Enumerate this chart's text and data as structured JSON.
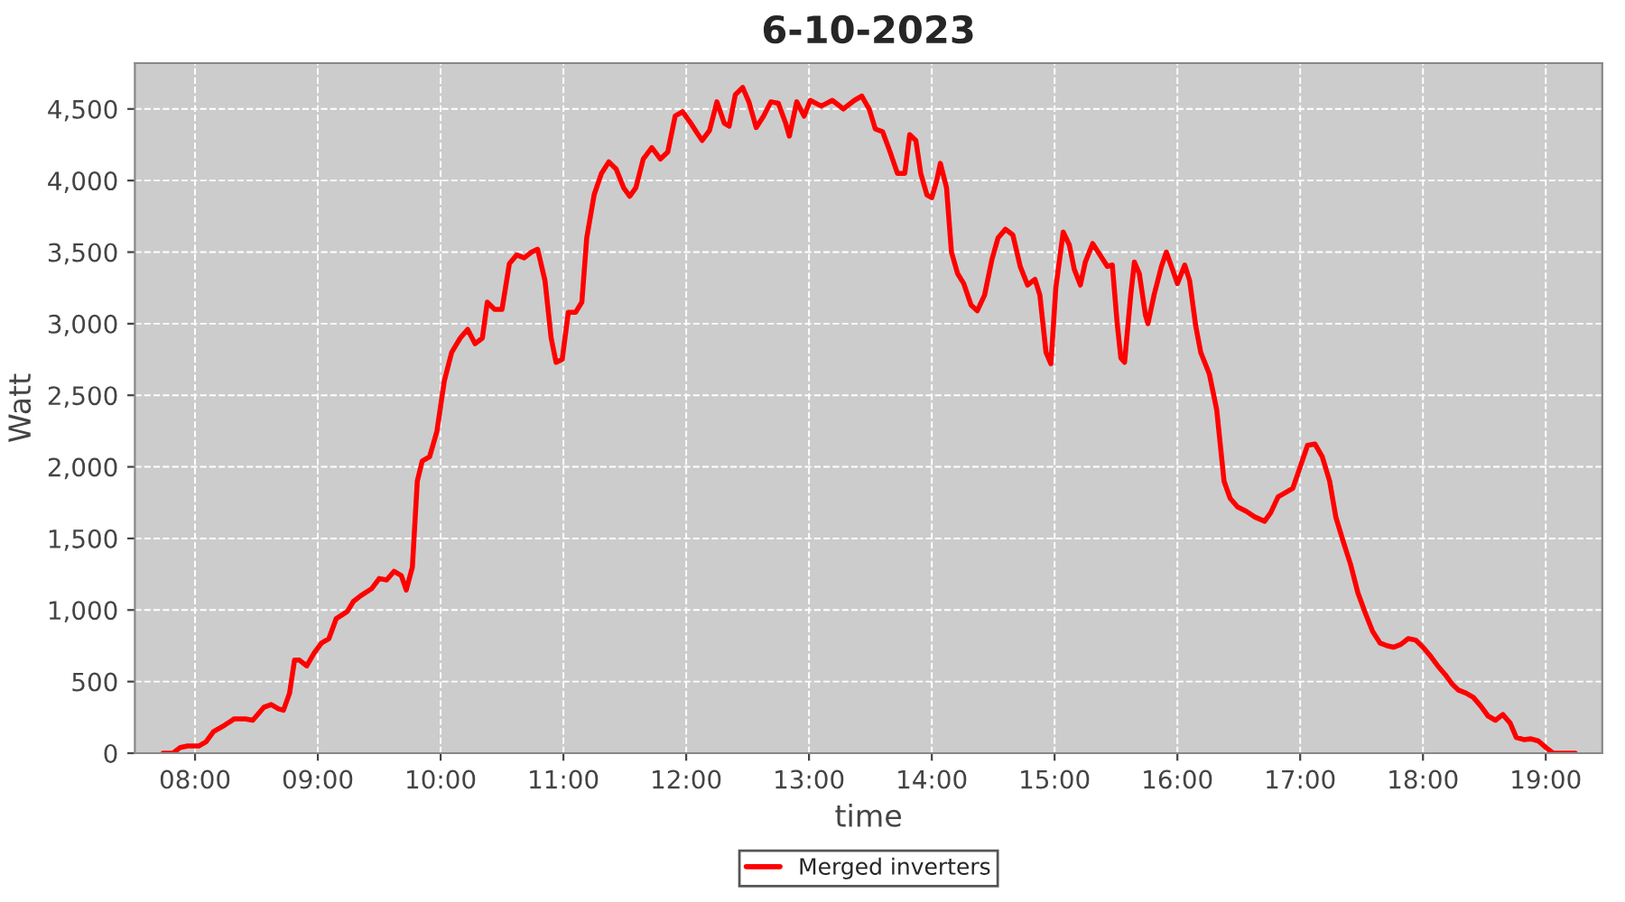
{
  "chart_data": {
    "type": "line",
    "title": "6-10-2023",
    "xlabel": "time",
    "ylabel": "Watt",
    "xlim": [
      7.51,
      19.46
    ],
    "ylim": [
      0,
      4820
    ],
    "xticks": [
      {
        "value": 8,
        "label": "08:00"
      },
      {
        "value": 9,
        "label": "09:00"
      },
      {
        "value": 10,
        "label": "10:00"
      },
      {
        "value": 11,
        "label": "11:00"
      },
      {
        "value": 12,
        "label": "12:00"
      },
      {
        "value": 13,
        "label": "13:00"
      },
      {
        "value": 14,
        "label": "14:00"
      },
      {
        "value": 15,
        "label": "15:00"
      },
      {
        "value": 16,
        "label": "16:00"
      },
      {
        "value": 17,
        "label": "17:00"
      },
      {
        "value": 18,
        "label": "18:00"
      },
      {
        "value": 19,
        "label": "19:00"
      }
    ],
    "yticks": [
      0,
      500,
      {
        "value": 1000,
        "label": "1,000"
      },
      {
        "value": 1500,
        "label": "1,500"
      },
      {
        "value": 2000,
        "label": "2,000"
      },
      {
        "value": 2500,
        "label": "2,500"
      },
      {
        "value": 3000,
        "label": "3,000"
      },
      {
        "value": 3500,
        "label": "3,500"
      },
      {
        "value": 4000,
        "label": "4,000"
      },
      {
        "value": 4500,
        "label": "4,500"
      }
    ],
    "grid": true,
    "legend": "bottom",
    "marker": "none",
    "line_style": "solid",
    "series": [
      {
        "name": "Merged inverters",
        "color": "#ff0000",
        "x": [
          7.74,
          7.82,
          7.88,
          7.94,
          8.03,
          8.09,
          8.15,
          8.24,
          8.32,
          8.41,
          8.47,
          8.56,
          8.62,
          8.68,
          8.72,
          8.77,
          8.81,
          8.85,
          8.91,
          8.97,
          9.03,
          9.09,
          9.15,
          9.24,
          9.29,
          9.35,
          9.44,
          9.5,
          9.56,
          9.62,
          9.68,
          9.72,
          9.77,
          9.81,
          9.85,
          9.91,
          9.97,
          10.03,
          10.09,
          10.16,
          10.22,
          10.28,
          10.34,
          10.38,
          10.44,
          10.5,
          10.56,
          10.62,
          10.68,
          10.74,
          10.79,
          10.85,
          10.9,
          10.94,
          10.99,
          11.04,
          11.1,
          11.15,
          11.19,
          11.25,
          11.31,
          11.37,
          11.43,
          11.49,
          11.54,
          11.59,
          11.65,
          11.72,
          11.79,
          11.85,
          11.91,
          11.97,
          12.03,
          12.09,
          12.13,
          12.19,
          12.25,
          12.31,
          12.35,
          12.4,
          12.46,
          12.51,
          12.57,
          12.63,
          12.69,
          12.75,
          12.81,
          12.84,
          12.9,
          12.96,
          13.01,
          13.1,
          13.19,
          13.28,
          13.37,
          13.43,
          13.49,
          13.54,
          13.6,
          13.66,
          13.72,
          13.78,
          13.82,
          13.87,
          13.91,
          13.96,
          14.0,
          14.04,
          14.07,
          14.12,
          14.16,
          14.21,
          14.26,
          14.32,
          14.37,
          14.43,
          14.49,
          14.54,
          14.6,
          14.66,
          14.72,
          14.78,
          14.84,
          14.88,
          14.93,
          14.97,
          15.01,
          15.07,
          15.12,
          15.16,
          15.21,
          15.25,
          15.31,
          15.37,
          15.43,
          15.47,
          15.51,
          15.54,
          15.57,
          15.62,
          15.65,
          15.69,
          15.74,
          15.76,
          15.81,
          15.87,
          15.91,
          15.96,
          16.0,
          16.06,
          16.1,
          16.15,
          16.19,
          16.26,
          16.32,
          16.38,
          16.43,
          16.49,
          16.56,
          16.63,
          16.71,
          16.76,
          16.82,
          16.88,
          16.94,
          17.0,
          17.06,
          17.12,
          17.18,
          17.24,
          17.29,
          17.35,
          17.41,
          17.47,
          17.53,
          17.59,
          17.65,
          17.71,
          17.76,
          17.82,
          17.88,
          17.94,
          18.0,
          18.06,
          18.12,
          18.18,
          18.24,
          18.29,
          18.35,
          18.41,
          18.47,
          18.53,
          18.59,
          18.65,
          18.71,
          18.76,
          18.82,
          18.88,
          18.94,
          19.0,
          19.06,
          19.15,
          19.24
        ],
        "values": [
          0,
          0,
          40,
          50,
          50,
          80,
          150,
          195,
          240,
          240,
          230,
          320,
          340,
          310,
          300,
          420,
          650,
          650,
          610,
          700,
          770,
          800,
          940,
          990,
          1060,
          1100,
          1150,
          1220,
          1210,
          1270,
          1240,
          1140,
          1300,
          1900,
          2040,
          2070,
          2250,
          2600,
          2800,
          2900,
          2960,
          2860,
          2900,
          3150,
          3100,
          3100,
          3420,
          3480,
          3460,
          3500,
          3520,
          3300,
          2900,
          2730,
          2750,
          3080,
          3080,
          3150,
          3600,
          3900,
          4050,
          4130,
          4080,
          3950,
          3890,
          3950,
          4150,
          4230,
          4150,
          4200,
          4450,
          4480,
          4410,
          4330,
          4280,
          4350,
          4550,
          4400,
          4380,
          4600,
          4650,
          4550,
          4370,
          4450,
          4550,
          4540,
          4400,
          4310,
          4550,
          4450,
          4560,
          4520,
          4560,
          4500,
          4560,
          4590,
          4500,
          4360,
          4340,
          4200,
          4050,
          4050,
          4320,
          4280,
          4050,
          3900,
          3880,
          4000,
          4120,
          3950,
          3500,
          3350,
          3280,
          3130,
          3090,
          3200,
          3450,
          3600,
          3660,
          3620,
          3400,
          3270,
          3310,
          3200,
          2800,
          2720,
          3250,
          3640,
          3550,
          3380,
          3270,
          3430,
          3560,
          3480,
          3400,
          3410,
          3000,
          2760,
          2730,
          3200,
          3430,
          3350,
          3060,
          3000,
          3200,
          3400,
          3500,
          3380,
          3280,
          3410,
          3300,
          2980,
          2800,
          2650,
          2400,
          1900,
          1780,
          1720,
          1690,
          1650,
          1620,
          1680,
          1790,
          1820,
          1850,
          2000,
          2150,
          2160,
          2070,
          1900,
          1650,
          1480,
          1320,
          1120,
          980,
          850,
          770,
          750,
          740,
          760,
          800,
          790,
          740,
          680,
          610,
          550,
          480,
          440,
          420,
          390,
          330,
          260,
          230,
          270,
          210,
          110,
          95,
          100,
          85,
          40,
          0,
          0,
          0
        ]
      }
    ]
  }
}
